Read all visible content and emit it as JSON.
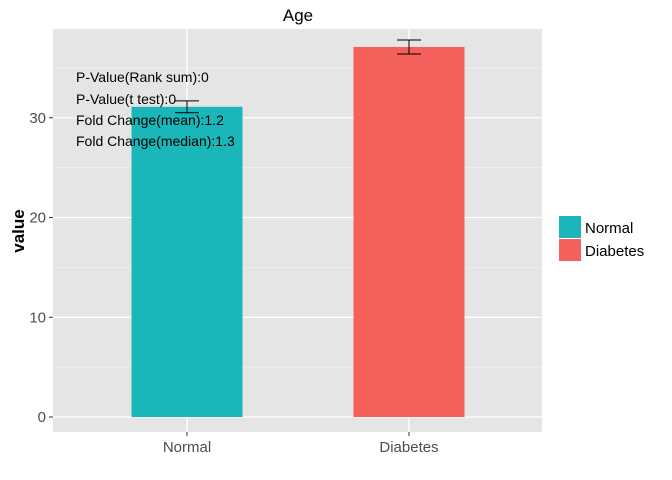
{
  "chart_data": {
    "type": "bar",
    "title": "Age",
    "xlabel": "",
    "ylabel": "value",
    "categories": [
      "Normal",
      "Diabetes"
    ],
    "values": [
      31.1,
      37.1
    ],
    "error": [
      0.6,
      0.7
    ],
    "colors": [
      "#1ab6b9",
      "#f4605c"
    ],
    "ylim": [
      -1.5,
      38.9
    ],
    "yticks": [
      0,
      10,
      20,
      30
    ],
    "ytick_labels": [
      "0",
      "10",
      "20",
      "30"
    ],
    "grid": true,
    "legend": {
      "position": "right",
      "entries": [
        {
          "label": "Normal",
          "color": "#1ab6b9"
        },
        {
          "label": "Diabetes",
          "color": "#f4605c"
        }
      ]
    },
    "annotations": [
      "P-Value(Rank sum):0",
      "P-Value(t test):0",
      "Fold Change(mean):1.2",
      "Fold Change(median):1.3"
    ]
  }
}
